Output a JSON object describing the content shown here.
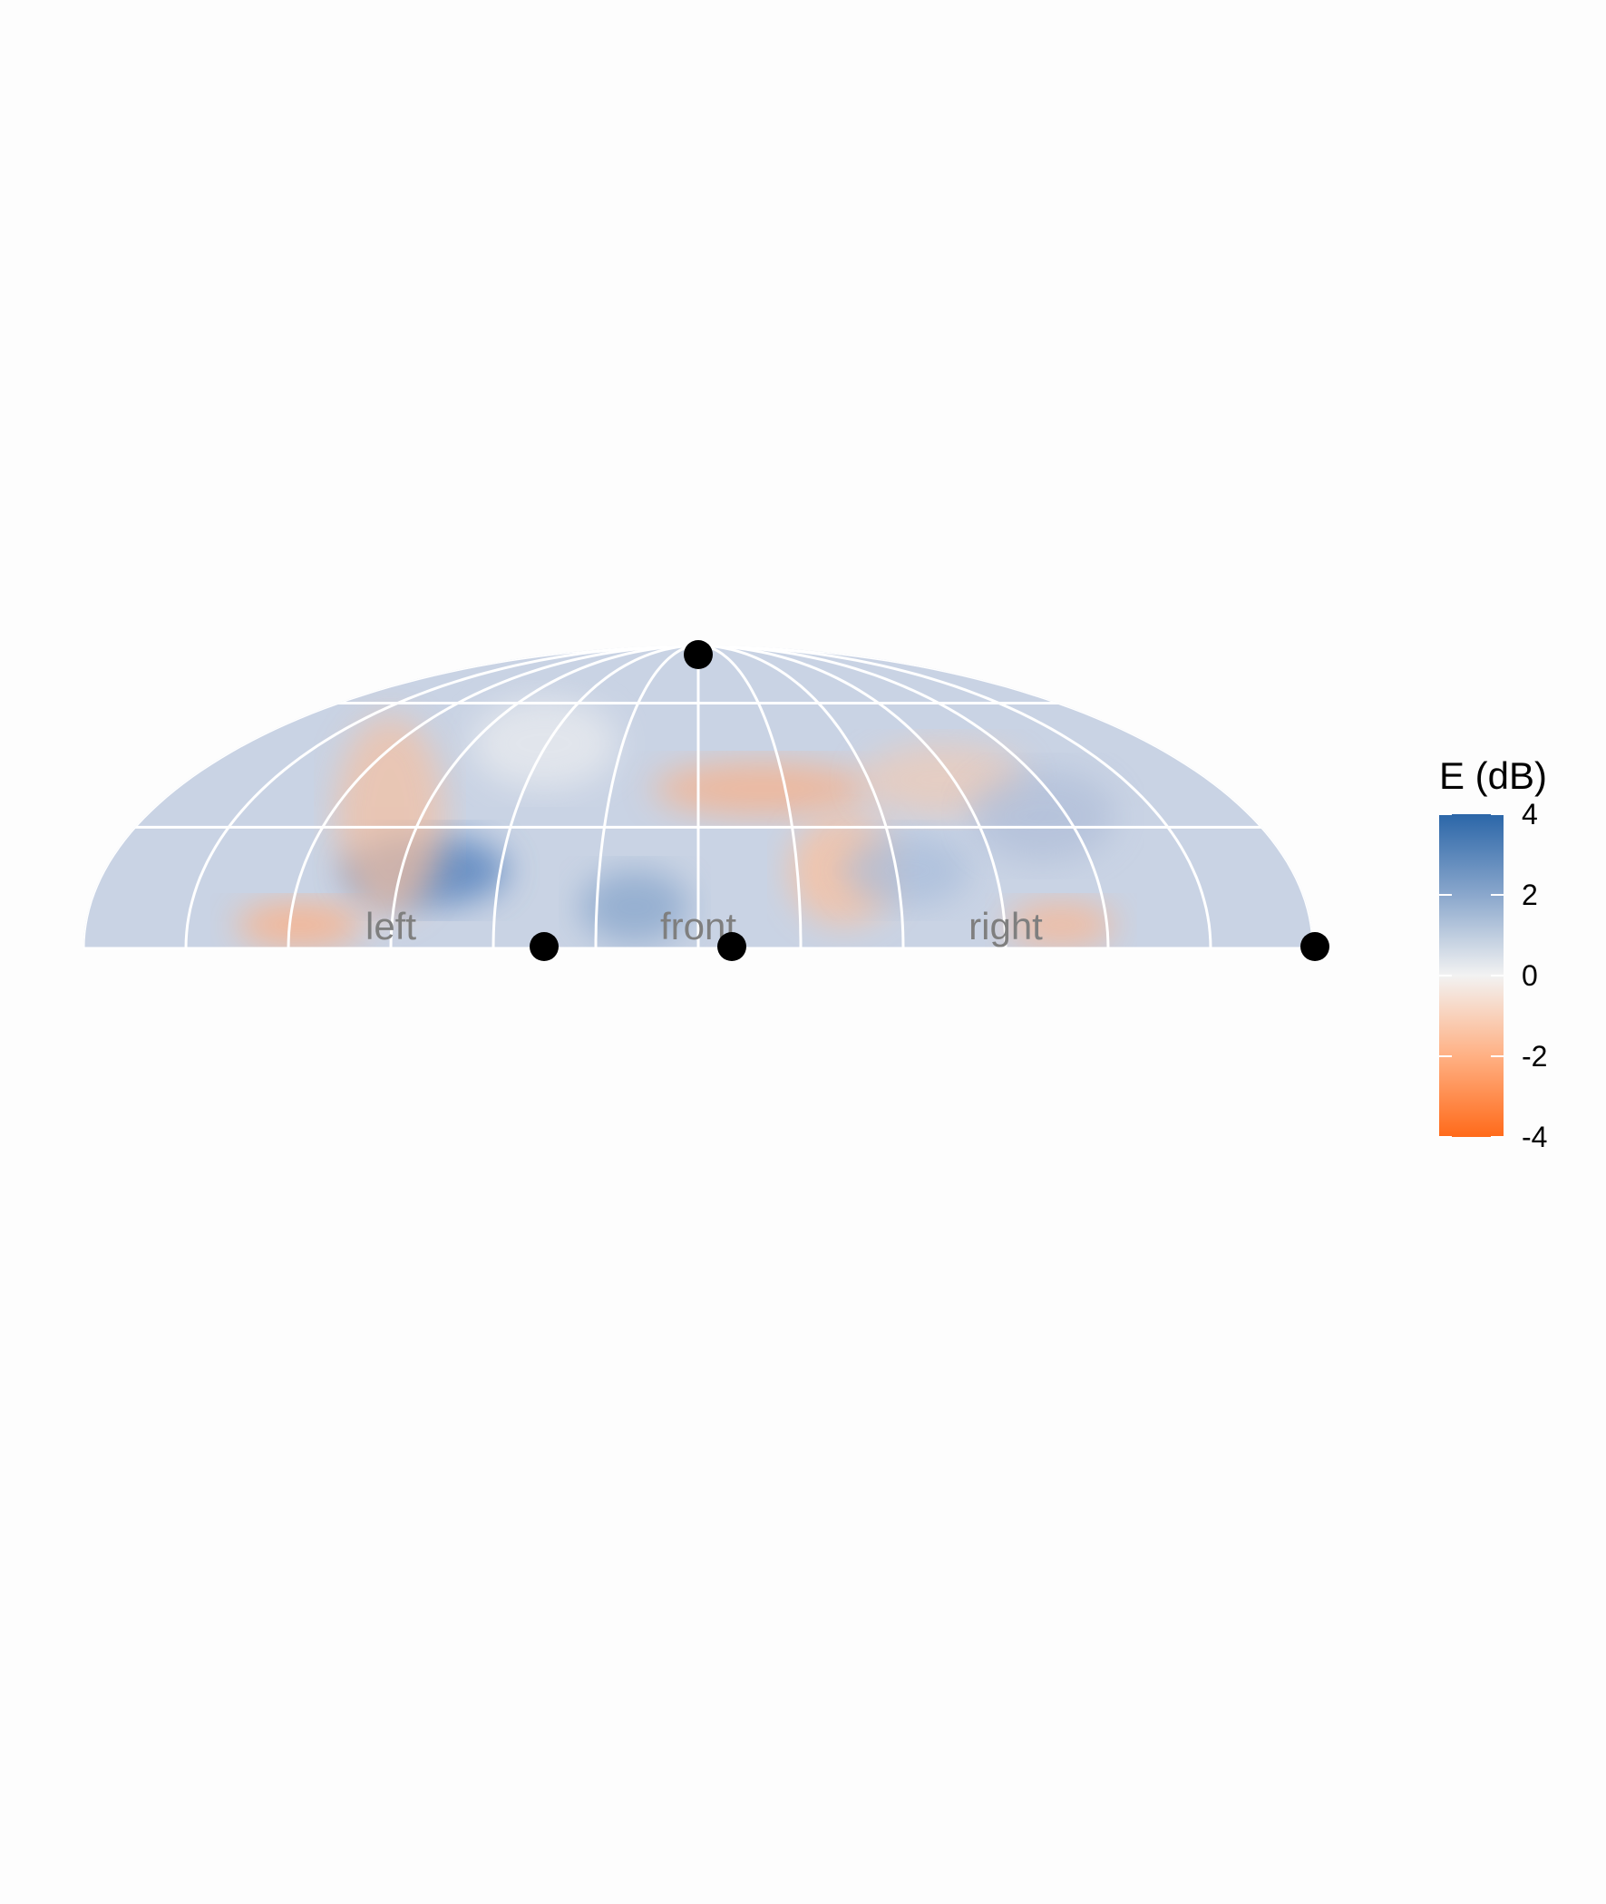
{
  "chart_data": {
    "type": "heatmap",
    "projection": "upper hemisphere, elliptical (Hammer-like) projection",
    "colorbar": {
      "title": "E (dB)",
      "ticks": [
        4,
        2,
        0,
        -2,
        -4
      ],
      "tick_labels": [
        "4",
        "2",
        "0",
        "-2",
        "-4"
      ],
      "range": [
        -4,
        4
      ],
      "colors": {
        "high": "#2b66a8",
        "mid": "#f2f2f2",
        "low": "#ff6a1a"
      }
    },
    "direction_labels": [
      {
        "text": "left"
      },
      {
        "text": "front"
      },
      {
        "text": "right"
      }
    ],
    "grid": true,
    "legend_position": "right"
  }
}
